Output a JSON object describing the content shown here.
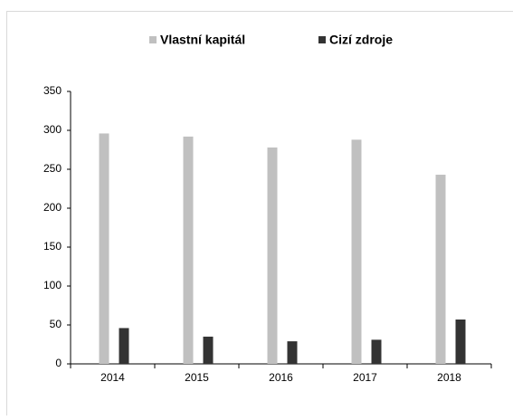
{
  "chart_data": {
    "type": "bar",
    "categories": [
      "2014",
      "2015",
      "2016",
      "2017",
      "2018"
    ],
    "series": [
      {
        "name": "Vlastní kapitál",
        "color": "#c0c0c0",
        "values": [
          296,
          292,
          278,
          288,
          243
        ]
      },
      {
        "name": "Cizí zdroje",
        "color": "#333333",
        "values": [
          46,
          35,
          29,
          31,
          57
        ]
      }
    ],
    "ylim": [
      0,
      350
    ],
    "yticks": [
      0,
      50,
      100,
      150,
      200,
      250,
      300,
      350
    ],
    "grid": false
  }
}
